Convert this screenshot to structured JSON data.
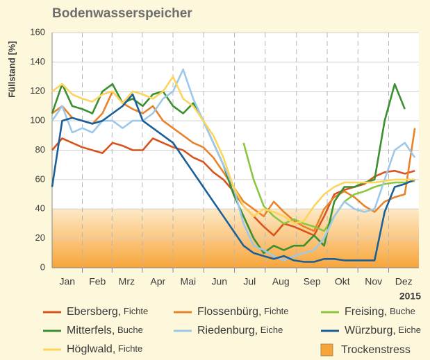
{
  "chart_data": {
    "type": "line",
    "title": "Bodenwasserspeicher",
    "y_label": "Füllstand [%]",
    "x_label": "2015",
    "xlim": [
      1,
      365
    ],
    "xticks": [
      {
        "value": 16,
        "label": "Jan"
      },
      {
        "value": 46,
        "label": "Feb"
      },
      {
        "value": 75,
        "label": "Mrz"
      },
      {
        "value": 106,
        "label": "Apr"
      },
      {
        "value": 136,
        "label": "Mai"
      },
      {
        "value": 167,
        "label": "Jun"
      },
      {
        "value": 197,
        "label": "Jul"
      },
      {
        "value": 228,
        "label": "Aug"
      },
      {
        "value": 259,
        "label": "Sep"
      },
      {
        "value": 289,
        "label": "Okt"
      },
      {
        "value": 320,
        "label": "Nov"
      },
      {
        "value": 350,
        "label": "Dez"
      }
    ],
    "ylim": [
      0,
      160
    ],
    "yticks": [
      0,
      20,
      40,
      60,
      80,
      100,
      120,
      140,
      160
    ],
    "grid": true,
    "band": {
      "label": "Trockenstress",
      "range": [
        0,
        40
      ],
      "color": "#f7a53a"
    },
    "x": [
      1,
      11,
      21,
      31,
      41,
      51,
      61,
      71,
      81,
      91,
      101,
      111,
      121,
      131,
      141,
      151,
      161,
      171,
      181,
      191,
      201,
      211,
      221,
      231,
      241,
      251,
      261,
      271,
      281,
      291,
      301,
      311,
      321,
      331,
      341,
      351,
      361
    ],
    "series": [
      {
        "name": "Ebersberg, Fichte",
        "color": "#d9531e",
        "values": [
          80,
          88,
          85,
          82,
          80,
          78,
          85,
          83,
          80,
          80,
          88,
          85,
          82,
          80,
          75,
          72,
          65,
          60,
          52,
          42,
          35,
          28,
          22,
          30,
          28,
          25,
          22,
          35,
          50,
          53,
          55,
          57,
          62,
          65,
          66,
          64,
          66
        ]
      },
      {
        "name": "Flossenbürg, Fichte",
        "color": "#e8832a",
        "values": [
          105,
          110,
          102,
          100,
          98,
          105,
          120,
          112,
          108,
          105,
          110,
          100,
          95,
          90,
          85,
          82,
          75,
          65,
          55,
          45,
          40,
          35,
          45,
          38,
          32,
          28,
          25,
          40,
          48,
          52,
          48,
          42,
          38,
          45,
          48,
          50,
          95
        ]
      },
      {
        "name": "Freising, Buche",
        "color": "#8cc63f",
        "values": [
          null,
          null,
          null,
          null,
          null,
          null,
          null,
          null,
          null,
          null,
          null,
          null,
          null,
          null,
          null,
          null,
          null,
          null,
          null,
          85,
          60,
          42,
          35,
          30,
          33,
          30,
          28,
          25,
          35,
          45,
          50,
          52,
          55,
          57,
          58,
          58,
          59
        ]
      },
      {
        "name": "Mitterfels, Buche",
        "color": "#3a8f2f",
        "values": [
          105,
          125,
          110,
          108,
          105,
          120,
          125,
          112,
          115,
          110,
          118,
          120,
          110,
          105,
          112,
          100,
          85,
          70,
          50,
          35,
          20,
          10,
          15,
          12,
          15,
          15,
          22,
          15,
          45,
          55,
          55,
          58,
          60,
          100,
          125,
          108,
          null
        ]
      },
      {
        "name": "Riedenburg, Eiche",
        "color": "#9dc8ea",
        "values": [
          100,
          110,
          92,
          95,
          92,
          100,
          100,
          95,
          100,
          100,
          105,
          115,
          120,
          135,
          115,
          100,
          85,
          70,
          55,
          30,
          15,
          12,
          8,
          5,
          8,
          10,
          12,
          20,
          35,
          45,
          40,
          38,
          40,
          60,
          80,
          85,
          75
        ]
      },
      {
        "name": "Würzburg, Eiche",
        "color": "#1b5f99",
        "values": [
          55,
          100,
          102,
          100,
          98,
          100,
          105,
          110,
          118,
          100,
          95,
          90,
          85,
          75,
          65,
          55,
          45,
          35,
          25,
          15,
          10,
          8,
          6,
          8,
          5,
          4,
          4,
          6,
          6,
          5,
          5,
          5,
          5,
          38,
          55,
          57,
          60
        ]
      },
      {
        "name": "Höglwald, Fichte",
        "color": "#fdd45c",
        "values": [
          120,
          125,
          118,
          115,
          113,
          118,
          120,
          112,
          120,
          118,
          115,
          120,
          130,
          115,
          110,
          100,
          90,
          75,
          55,
          42,
          35,
          40,
          38,
          35,
          30,
          32,
          42,
          50,
          55,
          58,
          58,
          58,
          58,
          59,
          60,
          60,
          60
        ]
      }
    ]
  }
}
